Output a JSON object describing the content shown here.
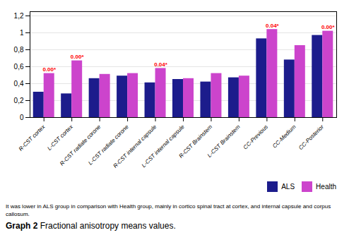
{
  "chart_data": {
    "type": "bar",
    "title": "Graph 2",
    "subtitle": " Fractional anisotropy means values.",
    "caption": "It was lower in ALS group in comparison with Health group, mainly in cortico spinal tract at cortex, and internal capsule and corpus\ncallosum.",
    "categories": [
      "R-CST cortex",
      "L-CST cortex",
      "R-CST radiate corone",
      "L-CST radiate corone",
      "R-CST internal capsule",
      "L-CST internal capsule",
      "R-CST Brainstem",
      "L-CST Brainstem",
      "CC-Previous",
      "CC-Medium",
      "CC-Posterior"
    ],
    "series": [
      {
        "name": "ALS",
        "color": "#1C1C8C",
        "values": [
          0.3,
          0.28,
          0.46,
          0.49,
          0.41,
          0.45,
          0.42,
          0.47,
          0.93,
          0.68,
          0.97
        ]
      },
      {
        "name": "Health",
        "color": "#CC44CC",
        "values": [
          0.52,
          0.67,
          0.51,
          0.52,
          0.58,
          0.46,
          0.52,
          0.49,
          1.04,
          0.85,
          1.02
        ]
      }
    ],
    "annotations": [
      {
        "category": "R-CST cortex",
        "series": "Health",
        "text": "0.00*",
        "color": "#FF0000"
      },
      {
        "category": "L-CST cortex",
        "series": "Health",
        "text": "0.00*",
        "color": "#FF0000"
      },
      {
        "category": "R-CST internal capsule",
        "series": "Health",
        "text": "0.04*",
        "color": "#FF0000"
      },
      {
        "category": "CC-Previous",
        "series": "Health",
        "text": "0.04*",
        "color": "#FF0000"
      },
      {
        "category": "CC-Posterior",
        "series": "Health",
        "text": "0.00*",
        "color": "#FF0000"
      }
    ],
    "ylim": [
      0,
      1.25
    ],
    "yticks": [
      0,
      {
        "value": 0.2,
        "label": "0,2"
      },
      {
        "value": 0.4,
        "label": "0,4"
      },
      {
        "value": 0.6,
        "label": "0,6"
      },
      {
        "value": 0.8,
        "label": "0,8"
      },
      1,
      {
        "value": 1.2,
        "label": "1,2"
      }
    ],
    "grid": true,
    "legend": "lower right"
  }
}
